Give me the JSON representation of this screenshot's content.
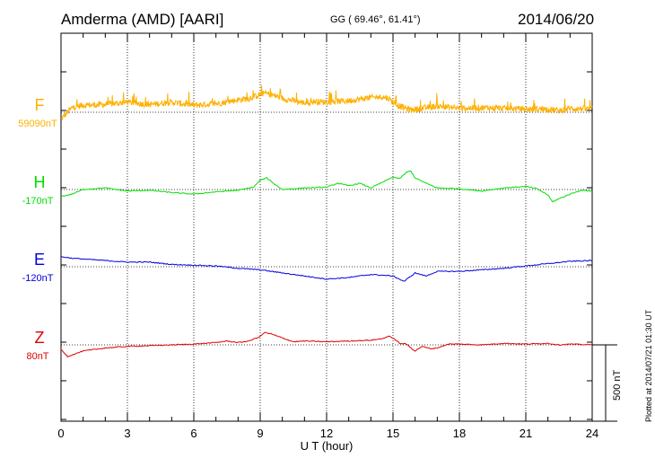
{
  "header": {
    "station": "Amderma (AMD)  [AARI]",
    "coords": "GG ( 69.46°,  61.41°)",
    "date": "2014/06/20"
  },
  "footer": {
    "plotted": "Plotted at 2014/07/21 01:30 UT",
    "scale": "500 nT"
  },
  "chart_data": {
    "type": "line",
    "title": "Amderma (AMD)  [AARI]",
    "xlabel": "U T (hour)",
    "ylabel": "",
    "xlim": [
      0,
      24
    ],
    "xticks": [
      0,
      3,
      6,
      9,
      12,
      15,
      18,
      21,
      24
    ],
    "grid": true,
    "scale_bar_nT": 500,
    "series": [
      {
        "name": "F",
        "baseline_label": "59090nT",
        "baseline_nT": 59090,
        "color": "#FFB000",
        "noisy": true,
        "x": [
          0,
          0.5,
          1,
          2,
          3,
          4,
          5,
          6,
          7,
          8,
          8.5,
          9,
          9.2,
          9.6,
          10,
          11,
          11.5,
          12,
          13,
          14,
          14.5,
          14.8,
          15.2,
          15.8,
          16.3,
          17,
          18,
          19,
          20,
          21,
          22,
          22.5,
          23,
          24
        ],
        "offset_nT": [
          -45,
          30,
          45,
          50,
          65,
          50,
          65,
          45,
          55,
          80,
          90,
          115,
          125,
          110,
          90,
          60,
          70,
          65,
          75,
          95,
          100,
          90,
          45,
          15,
          25,
          40,
          25,
          30,
          25,
          20,
          20,
          10,
          25,
          20
        ]
      },
      {
        "name": "H",
        "baseline_label": "-170nT",
        "baseline_nT": -170,
        "color": "#00DD00",
        "noisy": false,
        "x": [
          0,
          0.5,
          1,
          2,
          3,
          4,
          5,
          6,
          7,
          8,
          8.7,
          9,
          9.3,
          9.6,
          10,
          11,
          12,
          12.5,
          13,
          13.5,
          14,
          14.5,
          15,
          15.3,
          15.6,
          15.8,
          16,
          16.5,
          17,
          18,
          19,
          20,
          21,
          21.5,
          22,
          22.2,
          22.5,
          23,
          23.5,
          24
        ],
        "offset_nT": [
          -45,
          -30,
          0,
          10,
          -10,
          -5,
          -20,
          -30,
          -15,
          -5,
          15,
          60,
          75,
          40,
          0,
          10,
          15,
          40,
          25,
          40,
          10,
          45,
          80,
          70,
          110,
          120,
          75,
          40,
          10,
          5,
          -10,
          10,
          20,
          5,
          -35,
          -80,
          -60,
          -30,
          -5,
          -10
        ]
      },
      {
        "name": "E",
        "baseline_label": "-120nT",
        "baseline_nT": -120,
        "color": "#0000DD",
        "noisy": false,
        "x": [
          0,
          0.5,
          1,
          2,
          3,
          4,
          5,
          6,
          7,
          8,
          9,
          10,
          11,
          12,
          13,
          14,
          14.5,
          15,
          15.5,
          16,
          16.5,
          17,
          18,
          19,
          20,
          21,
          22,
          23,
          24
        ],
        "offset_nT": [
          65,
          55,
          50,
          40,
          30,
          30,
          15,
          10,
          5,
          -10,
          -20,
          -40,
          -60,
          -80,
          -70,
          -50,
          -55,
          -60,
          -95,
          -40,
          -60,
          -30,
          -30,
          -20,
          -10,
          5,
          20,
          35,
          40
        ]
      },
      {
        "name": "Z",
        "baseline_label": "80nT",
        "baseline_nT": 80,
        "color": "#DD0000",
        "noisy": false,
        "x": [
          0,
          0.3,
          0.6,
          1,
          2,
          3,
          4,
          5,
          6,
          7,
          7.5,
          8,
          8.5,
          9,
          9.2,
          9.5,
          10,
          10.5,
          11,
          12,
          13,
          14,
          14.5,
          14.8,
          15,
          15.3,
          15.6,
          16,
          16.3,
          16.7,
          17,
          17.5,
          18,
          19,
          20,
          21,
          22,
          22.5,
          23,
          24
        ],
        "offset_nT": [
          -30,
          -75,
          -60,
          -40,
          -20,
          -10,
          -5,
          0,
          5,
          15,
          25,
          15,
          25,
          55,
          80,
          70,
          45,
          20,
          25,
          20,
          25,
          30,
          40,
          55,
          45,
          10,
          5,
          -40,
          -10,
          -25,
          -20,
          5,
          5,
          0,
          10,
          5,
          10,
          0,
          5,
          0
        ]
      }
    ]
  }
}
